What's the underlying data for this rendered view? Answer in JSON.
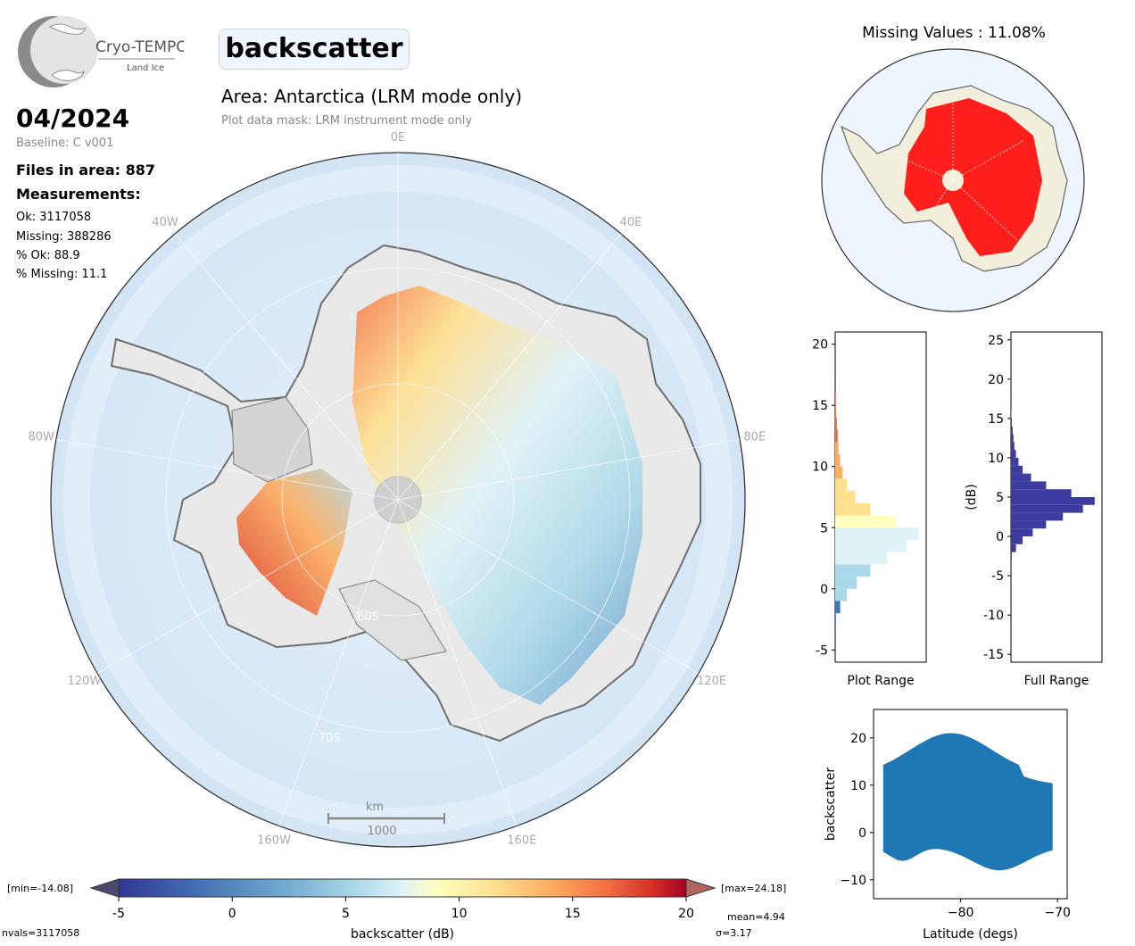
{
  "product": {
    "logo_text": "Cryo-TEMPO",
    "logo_subtext": "Land Ice",
    "variable_title": "backscatter",
    "area_title": "Area: Antarctica (LRM mode only)",
    "mask_note": "Plot data mask: LRM instrument mode only"
  },
  "info": {
    "date": "04/2024",
    "baseline": "Baseline: C v001",
    "files": "Files in area: 887",
    "measurements_heading": "Measurements:",
    "ok": "Ok: 3117058",
    "missing": "Missing: 388286",
    "pct_ok": "% Ok: 88.9",
    "pct_missing": "% Missing: 11.1"
  },
  "map": {
    "lon_labels": [
      "0E",
      "40E",
      "80E",
      "120E",
      "160E",
      "160W",
      "120W",
      "80W",
      "40W"
    ],
    "lat_labels": [
      "80S",
      "70S"
    ],
    "scale_unit": "km",
    "scale_value": "1000"
  },
  "missing_map": {
    "title": "Missing Values : 11.08%"
  },
  "colorbar": {
    "label": "backscatter (dB)",
    "min_label": "[min=-14.08]",
    "max_label": "[max=24.18]",
    "ticks": [
      "-5",
      "0",
      "5",
      "10",
      "15",
      "20"
    ],
    "nvals": "nvals=3117058",
    "mean": "mean=4.94",
    "sigma": "σ=3.17"
  },
  "colors": {
    "low": "#313695",
    "mid": "#ffffbf",
    "high": "#a50026",
    "hist_full": "#3c3ca0",
    "scatter": "#1f77b4",
    "missing": "#ff0000"
  },
  "chart_data": [
    {
      "type": "bar",
      "title": "",
      "xlabel": "Plot Range",
      "ylabel": "",
      "orientation": "horizontal",
      "ylim": [
        -6,
        21
      ],
      "yticks": [
        "-5",
        "0",
        "5",
        "10",
        "15",
        "20"
      ],
      "bins": [
        -2.5,
        -1.5,
        -0.5,
        0.5,
        1.5,
        2.5,
        3.5,
        4.5,
        5.5,
        6.5,
        7.5,
        8.5,
        9.5,
        10.5,
        11.5,
        12.5,
        13.5,
        14.5,
        15.5
      ],
      "counts": [
        0.01,
        0.06,
        0.14,
        0.26,
        0.42,
        0.62,
        0.86,
        1.0,
        0.72,
        0.42,
        0.24,
        0.14,
        0.09,
        0.06,
        0.04,
        0.03,
        0.02,
        0.01,
        0.005
      ]
    },
    {
      "type": "bar",
      "title": "",
      "xlabel": "Full Range",
      "ylabel": "(dB)",
      "orientation": "horizontal",
      "ylim": [
        -16,
        26
      ],
      "yticks": [
        "-15",
        "-10",
        "-5",
        "0",
        "5",
        "10",
        "15",
        "20",
        "25"
      ],
      "bins": [
        -2.5,
        -1.5,
        -0.5,
        0.5,
        1.5,
        2.5,
        3.5,
        4.5,
        5.5,
        6.5,
        7.5,
        8.5,
        9.5,
        10.5,
        11.5,
        12.5,
        13.5,
        14.5,
        15.5
      ],
      "counts": [
        0.01,
        0.06,
        0.14,
        0.26,
        0.42,
        0.62,
        0.86,
        1.0,
        0.72,
        0.42,
        0.24,
        0.14,
        0.09,
        0.06,
        0.04,
        0.03,
        0.02,
        0.01,
        0.005
      ]
    },
    {
      "type": "scatter",
      "title": "",
      "xlabel": "Latitude (degs)",
      "ylabel": "backscatter",
      "xlim": [
        -89,
        -69
      ],
      "ylim": [
        -14,
        26
      ],
      "xticks": [
        "-80",
        "-70"
      ],
      "yticks": [
        "-10",
        "0",
        "10",
        "20"
      ]
    }
  ]
}
